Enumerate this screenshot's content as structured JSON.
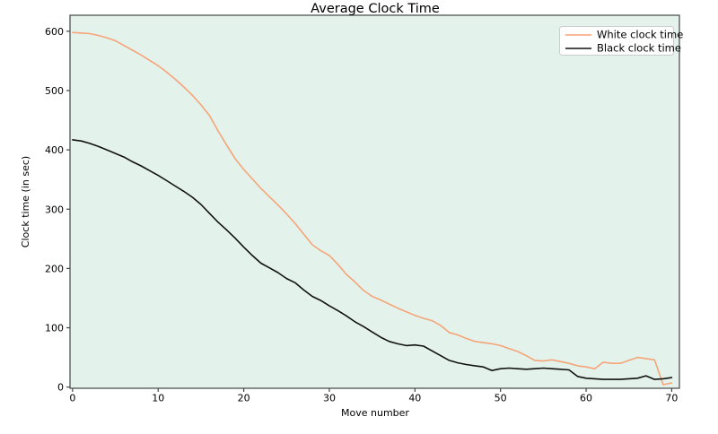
{
  "chart_data": {
    "type": "line",
    "title": "Average Clock Time",
    "xlabel": "Move number",
    "ylabel": "Clock time (in sec)",
    "xlim": [
      -0.3,
      70.9
    ],
    "ylim": [
      -2,
      627
    ],
    "xticks": [
      0,
      10,
      20,
      30,
      40,
      50,
      60,
      70
    ],
    "yticks": [
      0,
      100,
      200,
      300,
      400,
      500,
      600
    ],
    "grid": false,
    "plot_bg_color": "#e3f3eb",
    "figure_bg_color": "#ffffff",
    "legend": {
      "position": "upper right"
    },
    "x": [
      0,
      1,
      2,
      3,
      4,
      5,
      6,
      7,
      8,
      9,
      10,
      11,
      12,
      13,
      14,
      15,
      16,
      17,
      18,
      19,
      20,
      21,
      22,
      23,
      24,
      25,
      26,
      27,
      28,
      29,
      30,
      31,
      32,
      33,
      34,
      35,
      36,
      37,
      38,
      39,
      40,
      41,
      42,
      43,
      44,
      45,
      46,
      47,
      48,
      49,
      50,
      51,
      52,
      53,
      54,
      55,
      56,
      57,
      58,
      59,
      60,
      61,
      62,
      63,
      64,
      65,
      66,
      67,
      68,
      69,
      70
    ],
    "series": [
      {
        "id": "white",
        "name": "White clock time",
        "color": "#f6a478",
        "values": [
          598,
          597,
          596,
          593,
          589,
          584,
          576,
          568,
          560,
          551,
          542,
          531,
          519,
          506,
          492,
          476,
          458,
          432,
          408,
          385,
          367,
          351,
          335,
          321,
          307,
          292,
          276,
          258,
          240,
          230,
          222,
          207,
          190,
          177,
          163,
          153,
          147,
          140,
          133,
          127,
          121,
          116,
          112,
          104,
          92,
          88,
          82,
          77,
          75,
          73,
          70,
          65,
          60,
          53,
          45,
          44,
          46,
          43,
          40,
          36,
          34,
          31,
          42,
          40,
          40,
          45,
          50,
          48,
          46,
          4,
          7
        ]
      },
      {
        "id": "black",
        "name": "Black clock time",
        "color": "#111111",
        "values": [
          417,
          415,
          411,
          406,
          400,
          394,
          388,
          380,
          373,
          365,
          357,
          348,
          339,
          330,
          320,
          308,
          293,
          278,
          265,
          251,
          236,
          222,
          209,
          201,
          193,
          183,
          176,
          164,
          153,
          146,
          137,
          129,
          120,
          110,
          102,
          93,
          84,
          77,
          73,
          70,
          71,
          69,
          61,
          53,
          45,
          41,
          38,
          36,
          34,
          28,
          31,
          32,
          31,
          30,
          31,
          32,
          31,
          30,
          29,
          18,
          15,
          14,
          13,
          13,
          13,
          14,
          15,
          19,
          13,
          14,
          16
        ]
      }
    ]
  }
}
